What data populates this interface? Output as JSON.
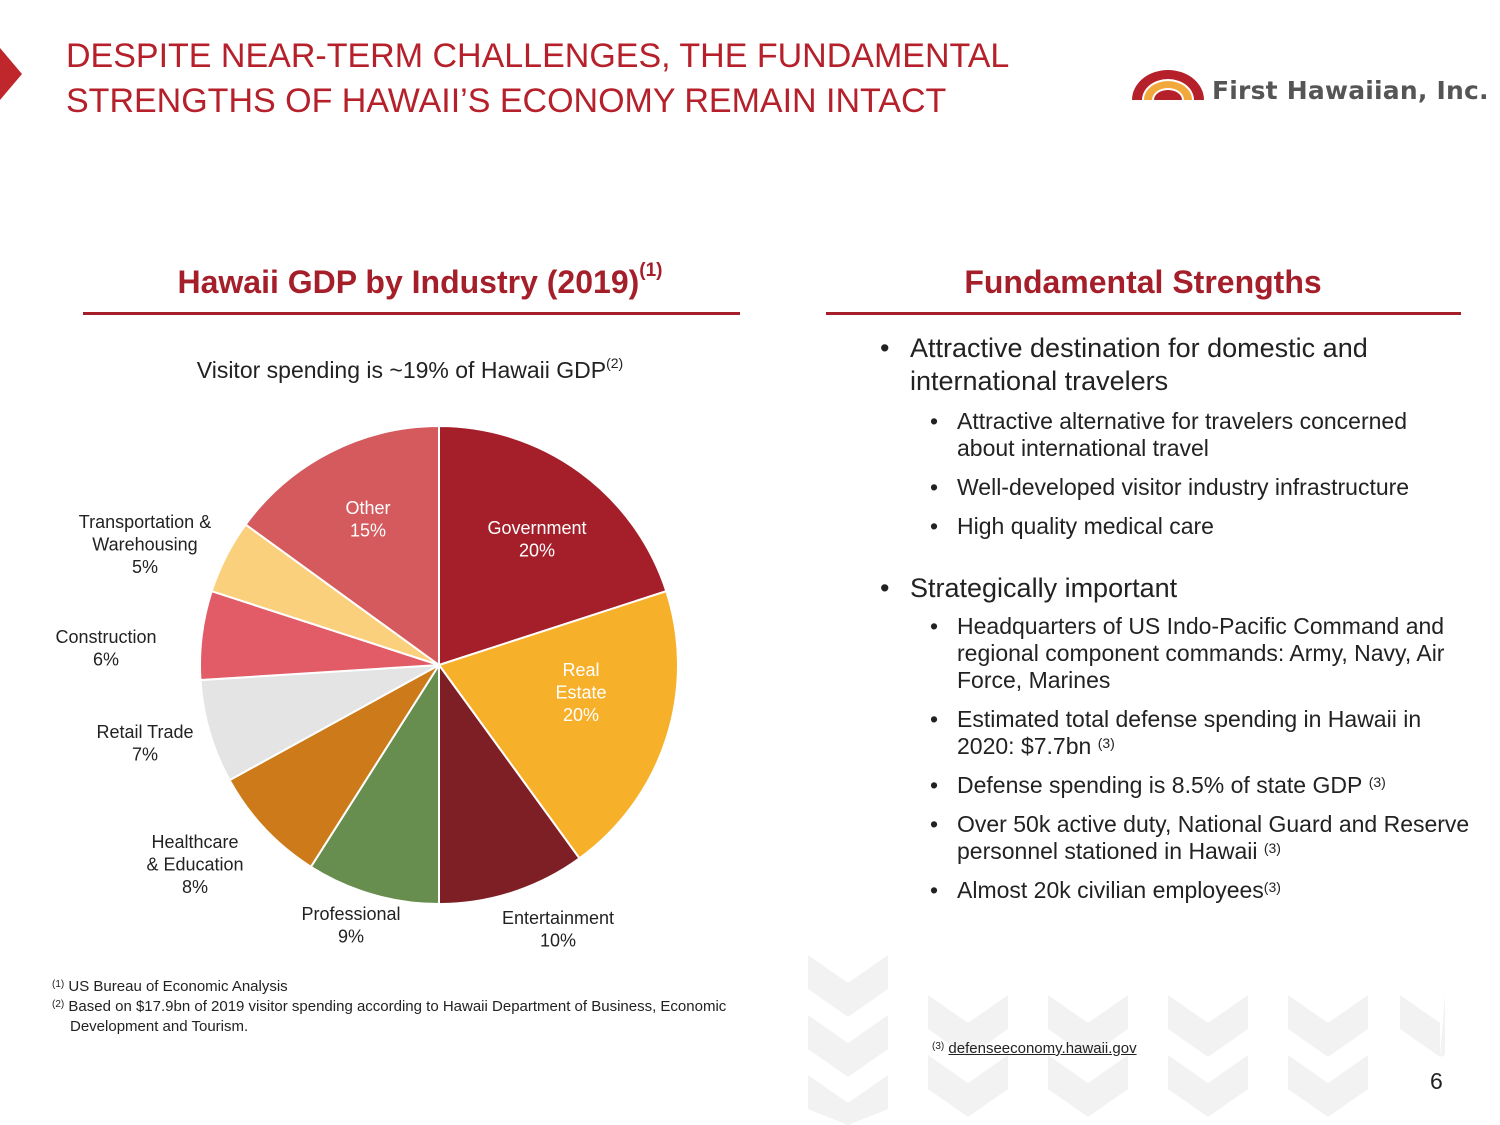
{
  "header": {
    "title": "DESPITE NEAR-TERM CHALLENGES, THE FUNDAMENTAL STRENGTHS OF HAWAII’S ECONOMY REMAIN INTACT",
    "logo_text": "First Hawaiian, Inc.",
    "accent_color": "#b5202a"
  },
  "left": {
    "heading": "Hawaii GDP by Industry (2019)",
    "heading_ref": "(1)",
    "subtitle": "Visitor spending is ~19% of Hawaii GDP",
    "subtitle_ref": "(2)"
  },
  "chart_data": {
    "type": "pie",
    "title": "Hawaii GDP by Industry (2019)",
    "slices": [
      {
        "label": "Government",
        "value": 20,
        "pct_label": "20%",
        "color": "#a51f2b"
      },
      {
        "label": "Real Estate",
        "value": 20,
        "pct_label": "20%",
        "color": "#f7b02a"
      },
      {
        "label": "Entertainment",
        "value": 10,
        "pct_label": "10%",
        "color": "#7d1f24"
      },
      {
        "label": "Professional",
        "value": 9,
        "pct_label": "9%",
        "color": "#678e4e"
      },
      {
        "label": "Healthcare & Education",
        "value": 8,
        "pct_label": "8%",
        "color": "#cc7a1a"
      },
      {
        "label": "Retail Trade",
        "value": 7,
        "pct_label": "7%",
        "color": "#e4e4e4"
      },
      {
        "label": "Construction",
        "value": 6,
        "pct_label": "6%",
        "color": "#e15c66"
      },
      {
        "label": "Transportation & Warehousing",
        "value": 5,
        "pct_label": "5%",
        "color": "#fbd07c"
      },
      {
        "label": "Other",
        "value": 15,
        "pct_label": "15%",
        "color": "#d45a5e"
      }
    ]
  },
  "right": {
    "heading": "Fundamental Strengths",
    "groups": [
      {
        "text": "Attractive destination for domestic and international travelers",
        "items": [
          {
            "text": "Attractive alternative for travelers concerned about international travel",
            "ref": ""
          },
          {
            "text": "Well-developed visitor industry infrastructure",
            "ref": ""
          },
          {
            "text": "High quality medical care",
            "ref": ""
          }
        ]
      },
      {
        "text": "Strategically important",
        "items": [
          {
            "text": "Headquarters of US Indo-Pacific Command and regional component commands:  Army, Navy, Air Force, Marines",
            "ref": ""
          },
          {
            "text": "Estimated total defense spending in Hawaii in 2020:  $7.7bn",
            "ref": "(3)"
          },
          {
            "text": "Defense spending is 8.5% of state GDP",
            "ref": "(3)"
          },
          {
            "text": "Over 50k active duty, National Guard and Reserve personnel stationed in Hawaii",
            "ref": "(3)"
          },
          {
            "text": "Almost 20k civilian employees",
            "ref": "(3)"
          }
        ]
      }
    ]
  },
  "footnotes": {
    "fn1_ref": "(1)",
    "fn1_text": "US Bureau of Economic Analysis",
    "fn2_ref": "(2)",
    "fn2_line1": "Based on $17.9bn of 2019 visitor spending according to Hawaii Department of Business, Economic",
    "fn2_line2": "Development and Tourism.",
    "fn3_ref": "(3)",
    "fn3_text": "defenseeconomy.hawaii.gov"
  },
  "page_number": "6"
}
